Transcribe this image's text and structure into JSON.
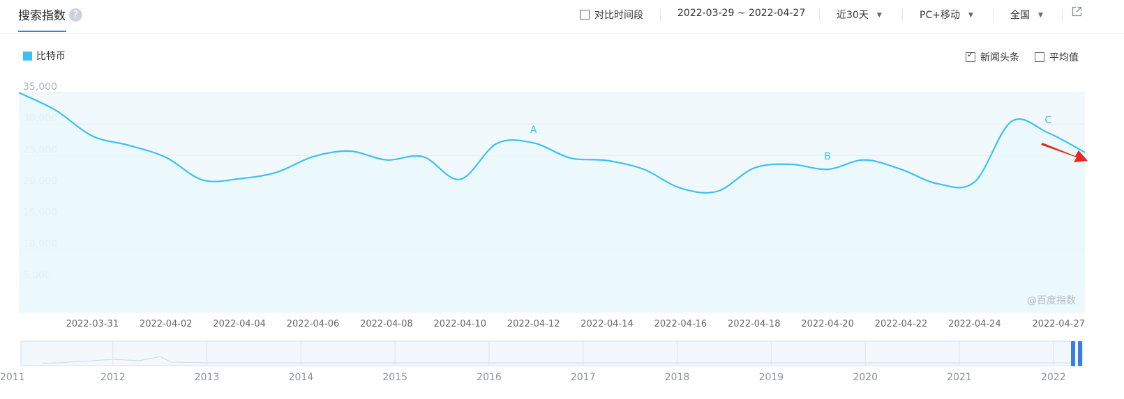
{
  "header": {
    "title": "搜索指数",
    "help": "?",
    "compare_label": "对比时间段",
    "date_range": "2022-03-29 ~ 2022-04-27",
    "period": "近30天",
    "device": "PC+移动",
    "region": "全国"
  },
  "options": {
    "news_label": "新闻头条",
    "avg_label": "平均值",
    "news_checked": true,
    "avg_checked": false
  },
  "colors": {
    "series": "#3dc1f0",
    "fill": "#f1f9fc",
    "accent": "#3a7de5",
    "annotation": "#e8291e"
  },
  "watermark": "@百度指数",
  "chart_data": {
    "type": "line",
    "series": [
      {
        "name": "比特币",
        "x": [
          "2022-03-29",
          "2022-03-30",
          "2022-03-31",
          "2022-04-01",
          "2022-04-02",
          "2022-04-03",
          "2022-04-04",
          "2022-04-05",
          "2022-04-06",
          "2022-04-07",
          "2022-04-08",
          "2022-04-09",
          "2022-04-10",
          "2022-04-11",
          "2022-04-12",
          "2022-04-13",
          "2022-04-14",
          "2022-04-15",
          "2022-04-16",
          "2022-04-17",
          "2022-04-18",
          "2022-04-19",
          "2022-04-20",
          "2022-04-21",
          "2022-04-22",
          "2022-04-23",
          "2022-04-24",
          "2022-04-25",
          "2022-04-26",
          "2022-04-27"
        ],
        "values": [
          35000,
          32200,
          28100,
          26600,
          24700,
          21100,
          21300,
          22300,
          24800,
          25700,
          24300,
          24800,
          21200,
          26900,
          27000,
          24600,
          24200,
          22800,
          19800,
          19300,
          23000,
          23600,
          22800,
          24300,
          22800,
          20500,
          20800,
          30400,
          28600,
          25500
        ]
      }
    ],
    "y_ticks": [
      35000,
      30000,
      25000,
      20000,
      15000,
      10000,
      5000
    ],
    "y_tick_labels": [
      "35,000",
      "30,000",
      "25,000",
      "20,000",
      "15,000",
      "10,000",
      "5,000"
    ],
    "x_tick_labels": [
      "2022-03-31",
      "2022-04-02",
      "2022-04-04",
      "2022-04-06",
      "2022-04-08",
      "2022-04-10",
      "2022-04-12",
      "2022-04-14",
      "2022-04-16",
      "2022-04-18",
      "2022-04-20",
      "2022-04-22",
      "2022-04-24",
      "2022-04-27"
    ],
    "ylim": [
      0,
      35000
    ],
    "annotations": [
      {
        "label": "A",
        "x": "2022-04-12"
      },
      {
        "label": "B",
        "x": "2022-04-20"
      },
      {
        "label": "C",
        "x": "2022-04-26"
      }
    ],
    "legend_position": "top-left",
    "grid": true
  },
  "timeline": {
    "years": [
      "2011",
      "2012",
      "2013",
      "2014",
      "2015",
      "2016",
      "2017",
      "2018",
      "2019",
      "2020",
      "2021",
      "2022"
    ]
  }
}
